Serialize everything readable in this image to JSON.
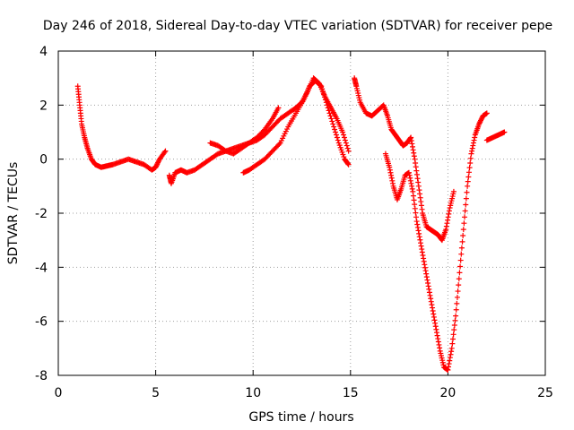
{
  "chart_data": {
    "type": "scatter",
    "title": "Day 246 of 2018, Sidereal Day-to-day VTEC variation (SDTVAR) for receiver pepe",
    "xlabel": "GPS time / hours",
    "ylabel": "SDTVAR / TECUs",
    "xlim": [
      0,
      25
    ],
    "ylim": [
      -8,
      4
    ],
    "xticks": [
      0,
      5,
      10,
      15,
      20,
      25
    ],
    "yticks": [
      -8,
      -6,
      -4,
      -2,
      0,
      2,
      4
    ],
    "xtick_labels": [
      "0",
      "5",
      "10",
      "15",
      "20",
      "25"
    ],
    "ytick_labels": [
      "-8",
      "-6",
      "-4",
      "-2",
      "0",
      "2",
      "4"
    ],
    "grid": true,
    "marker": "+",
    "color": "#ff0000",
    "series": [
      {
        "values_desc": "arc 1",
        "x": [
          1.0,
          1.1,
          1.2,
          1.35,
          1.5,
          1.7,
          1.9,
          2.2,
          2.5,
          2.8,
          3.2,
          3.6,
          4.0,
          4.4,
          4.8,
          5.0,
          5.2,
          5.5
        ],
        "y": [
          2.7,
          2.0,
          1.3,
          0.8,
          0.4,
          0.0,
          -0.2,
          -0.3,
          -0.25,
          -0.2,
          -0.1,
          0.0,
          -0.1,
          -0.2,
          -0.4,
          -0.3,
          0.0,
          0.3
        ]
      },
      {
        "values_desc": "arc 2",
        "x": [
          5.7,
          5.8,
          6.0,
          6.3,
          6.6,
          7.0,
          7.4,
          7.8,
          8.2,
          8.6,
          9.0,
          9.4,
          9.8,
          10.2,
          10.6,
          11.0,
          11.3
        ],
        "y": [
          -0.6,
          -0.9,
          -0.5,
          -0.4,
          -0.5,
          -0.4,
          -0.2,
          0.0,
          0.2,
          0.3,
          0.4,
          0.5,
          0.6,
          0.8,
          1.1,
          1.5,
          1.9
        ]
      },
      {
        "values_desc": "arc 3",
        "x": [
          7.8,
          8.2,
          8.6,
          9.0,
          9.4,
          9.8,
          10.2,
          10.6,
          11.0,
          11.4,
          11.8,
          12.2,
          12.5,
          12.8,
          13.1,
          13.4,
          13.7,
          14.0,
          14.3,
          14.6,
          14.9
        ],
        "y": [
          0.6,
          0.5,
          0.3,
          0.2,
          0.4,
          0.6,
          0.7,
          0.9,
          1.2,
          1.5,
          1.7,
          1.9,
          2.1,
          2.5,
          3.0,
          2.8,
          2.3,
          1.9,
          1.5,
          1.0,
          0.3
        ]
      },
      {
        "values_desc": "arc 4",
        "x": [
          9.5,
          9.8,
          10.2,
          10.6,
          11.0,
          11.4,
          11.8,
          12.2,
          12.6,
          12.9,
          13.2,
          13.5,
          13.8,
          14.1,
          14.4,
          14.7,
          14.9
        ],
        "y": [
          -0.5,
          -0.4,
          -0.2,
          0.0,
          0.3,
          0.6,
          1.2,
          1.7,
          2.2,
          2.7,
          2.9,
          2.7,
          2.0,
          1.3,
          0.6,
          0.0,
          -0.2
        ]
      },
      {
        "values_desc": "arc 5",
        "x": [
          15.2,
          15.3,
          15.5,
          15.8,
          16.1,
          16.4,
          16.7,
          16.9,
          17.1,
          17.3,
          17.5,
          17.7,
          17.9,
          18.1,
          18.3,
          18.5,
          18.7,
          18.9,
          19.1,
          19.3,
          19.5,
          19.7,
          19.9,
          20.1,
          20.3
        ],
        "y": [
          3.0,
          2.7,
          2.1,
          1.7,
          1.6,
          1.8,
          2.0,
          1.6,
          1.1,
          0.9,
          0.7,
          0.5,
          0.6,
          0.8,
          0.0,
          -1.0,
          -2.0,
          -2.5,
          -2.6,
          -2.7,
          -2.8,
          -3.0,
          -2.6,
          -1.8,
          -1.2
        ]
      },
      {
        "values_desc": "arc 6",
        "x": [
          16.8,
          17.0,
          17.2,
          17.4,
          17.6,
          17.8,
          18.0,
          18.2,
          18.4,
          18.6,
          18.8,
          19.0,
          19.2,
          19.4,
          19.6,
          19.8,
          20.0,
          20.2,
          20.4,
          20.6,
          20.8,
          21.0,
          21.2,
          21.4,
          21.6,
          21.8,
          22.0
        ],
        "y": [
          0.2,
          -0.3,
          -1.0,
          -1.5,
          -1.1,
          -0.6,
          -0.5,
          -1.2,
          -2.3,
          -3.1,
          -3.9,
          -4.7,
          -5.5,
          -6.3,
          -7.1,
          -7.7,
          -7.8,
          -7.0,
          -5.8,
          -4.2,
          -2.6,
          -1.0,
          0.2,
          0.9,
          1.3,
          1.6,
          1.7
        ]
      },
      {
        "values_desc": "arc 7",
        "x": [
          22.0,
          22.3,
          22.6,
          22.9
        ],
        "y": [
          0.7,
          0.8,
          0.9,
          1.0
        ]
      }
    ]
  }
}
